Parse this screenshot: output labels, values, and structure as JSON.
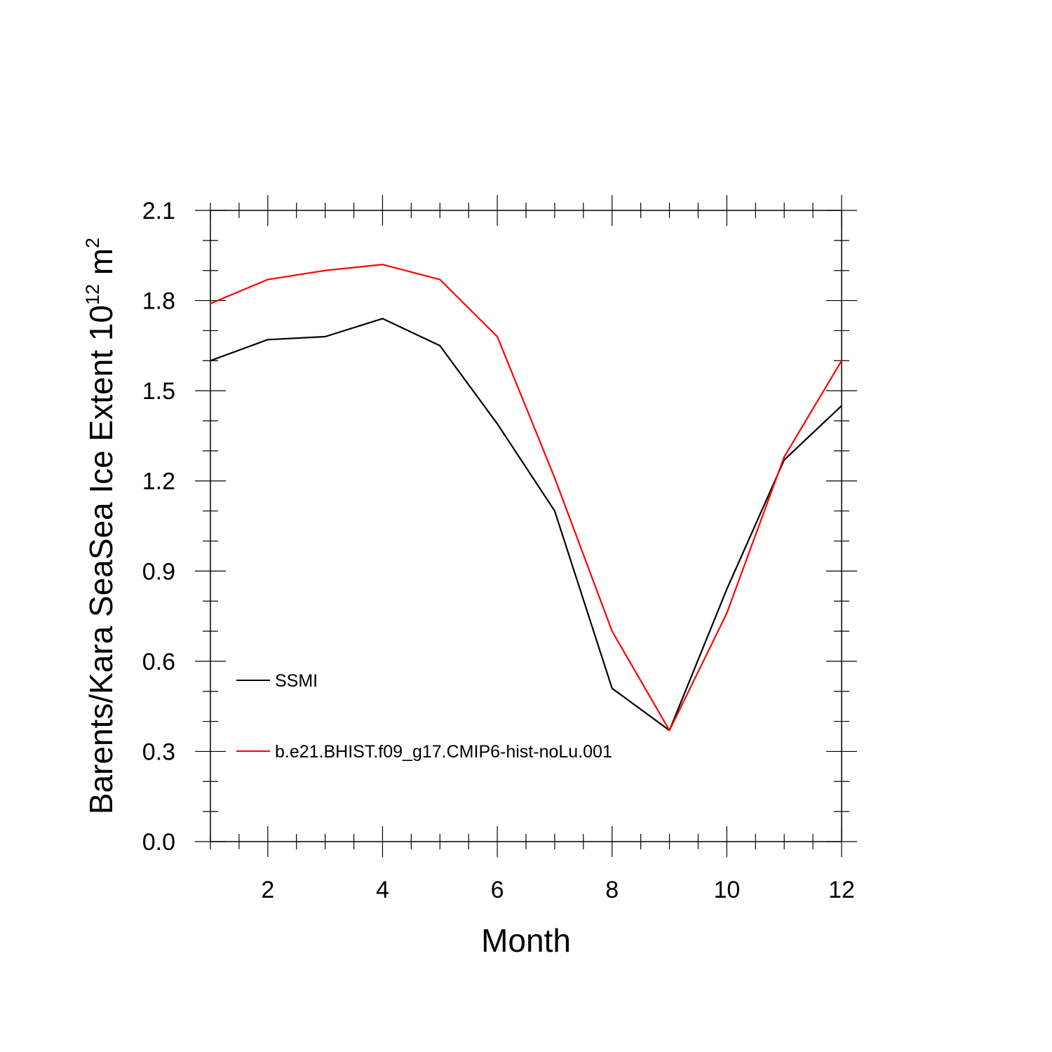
{
  "chart_data": {
    "type": "line",
    "xlabel": "Month",
    "ylabel_main": "Barents/Kara SeaSea Ice Extent 10",
    "ylabel_exponent": "12",
    "ylabel_unit": " m",
    "ylabel_unit_exponent": "2",
    "xlim": [
      1,
      12
    ],
    "ylim": [
      0.0,
      2.1
    ],
    "x_major_ticks": [
      2,
      4,
      6,
      8,
      10,
      12
    ],
    "x_tick_labels": [
      "2",
      "4",
      "6",
      "8",
      "10",
      "12"
    ],
    "y_major_ticks": [
      0.0,
      0.3,
      0.6,
      0.9,
      1.2,
      1.5,
      1.8,
      2.1
    ],
    "y_tick_labels": [
      "0.0",
      "0.3",
      "0.6",
      "0.9",
      "1.2",
      "1.5",
      "1.8",
      "2.1"
    ],
    "x": [
      1,
      2,
      3,
      4,
      5,
      6,
      7,
      8,
      9,
      10,
      11,
      12
    ],
    "series": [
      {
        "name": "SSMI",
        "color": "#000000",
        "values": [
          1.6,
          1.67,
          1.68,
          1.74,
          1.65,
          1.39,
          1.1,
          0.51,
          0.37,
          0.84,
          1.27,
          1.45
        ]
      },
      {
        "name": "b.e21.BHIST.f09_g17.CMIP6-hist-noLu.001",
        "color": "#ff0000",
        "values": [
          1.79,
          1.87,
          1.9,
          1.92,
          1.87,
          1.68,
          1.21,
          0.7,
          0.37,
          0.76,
          1.28,
          1.6
        ]
      }
    ],
    "legend_position": "lower-left",
    "grid": false
  }
}
